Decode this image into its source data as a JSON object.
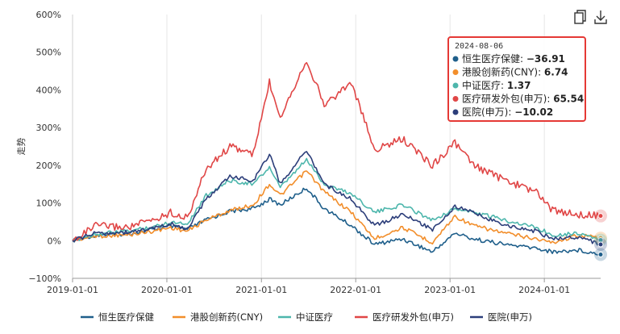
{
  "toolbar": {
    "copy_icon": "copy-icon",
    "download_icon": "download-icon"
  },
  "tooltip": {
    "date": "2024-08-06",
    "rows": [
      {
        "label": "恒生医疗保健",
        "value": "−36.91"
      },
      {
        "label": "港股创新药(CNY)",
        "value": "6.74"
      },
      {
        "label": "中证医疗",
        "value": "1.37"
      },
      {
        "label": "医疗研发外包(申万)",
        "value": "65.54"
      },
      {
        "label": "医院(申万)",
        "value": "−10.02"
      }
    ],
    "border_color": "#e53935"
  },
  "chart_data": {
    "type": "line",
    "ylabel": "走势",
    "xlabel": "",
    "y_unit": "%",
    "ylim": [
      -100,
      600
    ],
    "y_ticks": [
      -100,
      0,
      100,
      200,
      300,
      400,
      500,
      600
    ],
    "y_tick_labels": [
      "−100%",
      "0%",
      "100%",
      "200%",
      "300%",
      "400%",
      "500%",
      "600%"
    ],
    "x_start": "2019-01-01",
    "x_end": "2024-08-06",
    "x_ticks": [
      "2019-01-01",
      "2020-01-01",
      "2021-01-01",
      "2022-01-01",
      "2023-01-01",
      "2024-01-01"
    ],
    "grid": "vertical",
    "legend_position": "bottom",
    "series": [
      {
        "name": "恒生医疗保健",
        "color": "#1f5f8b",
        "points": [
          [
            "2019-01-01",
            0
          ],
          [
            "2019-04-01",
            15
          ],
          [
            "2019-08-01",
            18
          ],
          [
            "2019-12-01",
            32
          ],
          [
            "2020-01-15",
            38
          ],
          [
            "2020-03-20",
            30
          ],
          [
            "2020-06-01",
            55
          ],
          [
            "2020-09-01",
            78
          ],
          [
            "2020-12-01",
            85
          ],
          [
            "2021-02-01",
            110
          ],
          [
            "2021-03-15",
            95
          ],
          [
            "2021-06-25",
            140
          ],
          [
            "2021-09-01",
            85
          ],
          [
            "2021-12-15",
            40
          ],
          [
            "2022-03-15",
            -10
          ],
          [
            "2022-07-01",
            5
          ],
          [
            "2022-10-25",
            -30
          ],
          [
            "2023-01-20",
            20
          ],
          [
            "2023-04-01",
            5
          ],
          [
            "2023-08-01",
            -10
          ],
          [
            "2023-12-01",
            -20
          ],
          [
            "2024-02-01",
            -30
          ],
          [
            "2024-05-15",
            -25
          ],
          [
            "2024-08-06",
            -36.91
          ]
        ]
      },
      {
        "name": "港股创新药(CNY)",
        "color": "#f28e2b",
        "points": [
          [
            "2019-01-01",
            0
          ],
          [
            "2019-04-01",
            12
          ],
          [
            "2019-08-01",
            15
          ],
          [
            "2019-12-01",
            28
          ],
          [
            "2020-01-15",
            35
          ],
          [
            "2020-03-20",
            25
          ],
          [
            "2020-06-01",
            55
          ],
          [
            "2020-09-01",
            80
          ],
          [
            "2020-12-01",
            95
          ],
          [
            "2021-02-01",
            150
          ],
          [
            "2021-03-15",
            120
          ],
          [
            "2021-06-25",
            185
          ],
          [
            "2021-09-01",
            130
          ],
          [
            "2021-12-15",
            75
          ],
          [
            "2022-03-15",
            5
          ],
          [
            "2022-07-01",
            35
          ],
          [
            "2022-10-25",
            -5
          ],
          [
            "2023-01-20",
            65
          ],
          [
            "2023-04-01",
            40
          ],
          [
            "2023-08-01",
            20
          ],
          [
            "2023-12-01",
            5
          ],
          [
            "2024-02-01",
            -5
          ],
          [
            "2024-05-15",
            15
          ],
          [
            "2024-08-06",
            6.74
          ]
        ]
      },
      {
        "name": "中证医疗",
        "color": "#4db6ac",
        "points": [
          [
            "2019-01-01",
            0
          ],
          [
            "2019-04-01",
            18
          ],
          [
            "2019-08-01",
            25
          ],
          [
            "2019-12-01",
            40
          ],
          [
            "2020-01-15",
            50
          ],
          [
            "2020-03-20",
            45
          ],
          [
            "2020-06-01",
            120
          ],
          [
            "2020-09-01",
            160
          ],
          [
            "2020-12-01",
            150
          ],
          [
            "2021-02-01",
            195
          ],
          [
            "2021-03-15",
            140
          ],
          [
            "2021-06-25",
            215
          ],
          [
            "2021-09-01",
            150
          ],
          [
            "2021-12-15",
            125
          ],
          [
            "2022-03-15",
            75
          ],
          [
            "2022-07-01",
            95
          ],
          [
            "2022-10-25",
            55
          ],
          [
            "2023-01-20",
            85
          ],
          [
            "2023-04-01",
            75
          ],
          [
            "2023-08-01",
            55
          ],
          [
            "2023-12-01",
            35
          ],
          [
            "2024-02-01",
            15
          ],
          [
            "2024-05-15",
            20
          ],
          [
            "2024-08-06",
            1.37
          ]
        ]
      },
      {
        "name": "医疗研发外包(申万)",
        "color": "#e04646",
        "points": [
          [
            "2019-01-01",
            0
          ],
          [
            "2019-04-01",
            40
          ],
          [
            "2019-08-01",
            35
          ],
          [
            "2019-12-01",
            60
          ],
          [
            "2020-01-15",
            75
          ],
          [
            "2020-03-20",
            60
          ],
          [
            "2020-06-01",
            190
          ],
          [
            "2020-09-01",
            250
          ],
          [
            "2020-12-01",
            230
          ],
          [
            "2021-02-01",
            420
          ],
          [
            "2021-03-15",
            330
          ],
          [
            "2021-06-25",
            480
          ],
          [
            "2021-09-01",
            360
          ],
          [
            "2021-12-15",
            420
          ],
          [
            "2022-03-15",
            240
          ],
          [
            "2022-07-01",
            270
          ],
          [
            "2022-10-25",
            200
          ],
          [
            "2023-01-20",
            260
          ],
          [
            "2023-04-01",
            200
          ],
          [
            "2023-08-01",
            160
          ],
          [
            "2023-12-01",
            130
          ],
          [
            "2024-02-01",
            80
          ],
          [
            "2024-05-15",
            70
          ],
          [
            "2024-08-06",
            65.54
          ]
        ]
      },
      {
        "name": "医院(申万)",
        "color": "#2c3e7a",
        "points": [
          [
            "2019-01-01",
            0
          ],
          [
            "2019-04-01",
            20
          ],
          [
            "2019-08-01",
            22
          ],
          [
            "2019-12-01",
            35
          ],
          [
            "2020-01-15",
            45
          ],
          [
            "2020-03-20",
            30
          ],
          [
            "2020-06-01",
            110
          ],
          [
            "2020-09-01",
            170
          ],
          [
            "2020-12-01",
            160
          ],
          [
            "2021-02-01",
            230
          ],
          [
            "2021-03-15",
            150
          ],
          [
            "2021-06-25",
            240
          ],
          [
            "2021-09-01",
            150
          ],
          [
            "2021-12-15",
            110
          ],
          [
            "2022-03-15",
            40
          ],
          [
            "2022-07-01",
            70
          ],
          [
            "2022-10-25",
            30
          ],
          [
            "2023-01-20",
            90
          ],
          [
            "2023-04-01",
            75
          ],
          [
            "2023-08-01",
            40
          ],
          [
            "2023-12-01",
            25
          ],
          [
            "2024-02-01",
            5
          ],
          [
            "2024-05-15",
            10
          ],
          [
            "2024-08-06",
            -10.02
          ]
        ]
      }
    ]
  }
}
